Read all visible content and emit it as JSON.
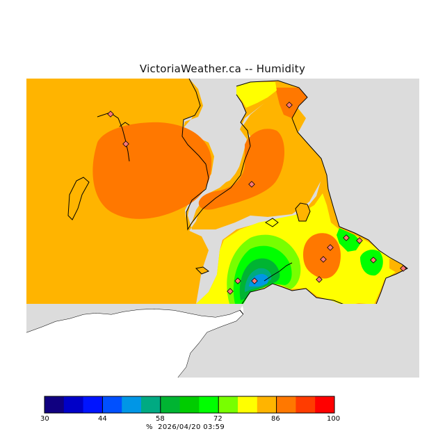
{
  "title": "VictoriaWeather.ca -- Humidity",
  "legend": {
    "ticks": [
      "30",
      "44",
      "58",
      "72",
      "86",
      "100"
    ],
    "units_label": "%",
    "timestamp": "2026/04/20 03:59",
    "colors": [
      "#100080",
      "#0000c8",
      "#0014ff",
      "#0050ff",
      "#0096e6",
      "#00aa82",
      "#00b432",
      "#00cc00",
      "#00ff00",
      "#78ff00",
      "#ffff00",
      "#ffb400",
      "#ff7800",
      "#ff3c00",
      "#ff0000"
    ]
  },
  "map": {
    "land_color": "#ffb400",
    "water_color": "#dcdcdc",
    "no_data_color": "#ffffff",
    "station_count": 14
  }
}
